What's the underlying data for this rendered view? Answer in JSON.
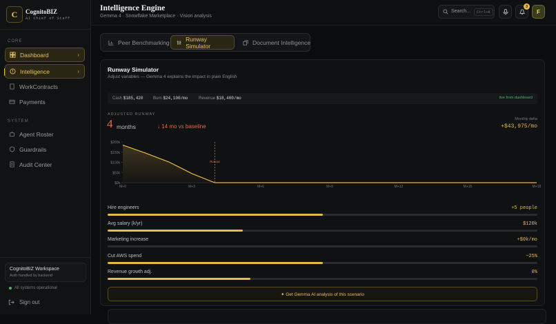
{
  "sidebar": {
    "brand": "CognitoBIZ",
    "logo": "C",
    "tagline": "AI Chief of Staff",
    "sections": [
      {
        "label": "CORE",
        "items": [
          "Dashboard",
          "Intelligence",
          "WorkContracts",
          "Payments"
        ]
      },
      {
        "label": "SYSTEM",
        "items": [
          "Agent Roster",
          "Guardrails",
          "Audit Center"
        ]
      }
    ],
    "workspace": {
      "name": "CognitoBIZ Workspace",
      "note": "Auth handled by backend"
    },
    "status": "All systems operational",
    "sign_out": "Sign out"
  },
  "header": {
    "title": "Intelligence Engine",
    "subtitle": "Gemma 4 · Snowflake Marketplace · Vision analysis",
    "search": "Search...",
    "shortcut": "Ctrl+K",
    "notifications": "3",
    "avatar": "F"
  },
  "tabs": [
    "Peer Benchmarking",
    "Runway Simulator",
    "Document Intelligence"
  ],
  "panel": {
    "title": "Runway Simulator",
    "subtitle": "Adjust variables — Gemma 4 explains the impact in plain English",
    "stats": [
      {
        "label": "Cash",
        "value": "$185,420"
      },
      {
        "label": "Burn",
        "value": "$24,100/mo"
      },
      {
        "label": "Revenue",
        "value": "$18,400/mo"
      }
    ],
    "source": "live from dashboard",
    "runway_label": "ADJUSTED RUNWAY",
    "runway": "4",
    "runway_unit": "months",
    "vs_baseline": "↓ 14 mo vs baseline",
    "monthly_delta_label": "Monthly delta",
    "monthly_delta": "+$43,975/mo",
    "chart": {
      "type": "line",
      "x": [
        "M+0",
        null,
        null,
        "M+3",
        null,
        null,
        "M+6",
        null,
        null,
        "M+9",
        null,
        null,
        "M+12",
        null,
        null,
        "M+15",
        null,
        null,
        "M+18"
      ],
      "values": [
        185,
        145,
        102,
        45,
        0,
        0,
        0,
        0,
        0,
        0,
        0,
        0,
        0,
        0,
        0,
        0,
        0,
        0,
        0
      ],
      "color": "#e8b84a",
      "ylim": [
        0,
        200
      ],
      "yticks": [
        {
          "value": 0,
          "label": "$0k"
        },
        {
          "value": 50,
          "label": "$50k"
        },
        {
          "value": 100,
          "label": "$100k"
        },
        {
          "value": 150,
          "label": "$150k"
        },
        {
          "value": 200,
          "label": "$200k"
        }
      ],
      "annotation": {
        "label": "Runout",
        "x": 4
      }
    },
    "sliders": [
      {
        "label": "Hire engineers",
        "value": "+5 people",
        "level": 50
      },
      {
        "label": "Avg salary (k/yr)",
        "value": "$120k",
        "level": 31.5
      },
      {
        "label": "Marketing increase",
        "value": "+$0k/mo",
        "level": 0
      },
      {
        "label": "Cut AWS spend",
        "value": "−25%",
        "level": 50
      },
      {
        "label": "Revenue growth adj.",
        "value": "0%",
        "level": 33.3
      }
    ],
    "cta": "✦ Get Gemma AI analysis of this scenario"
  }
}
